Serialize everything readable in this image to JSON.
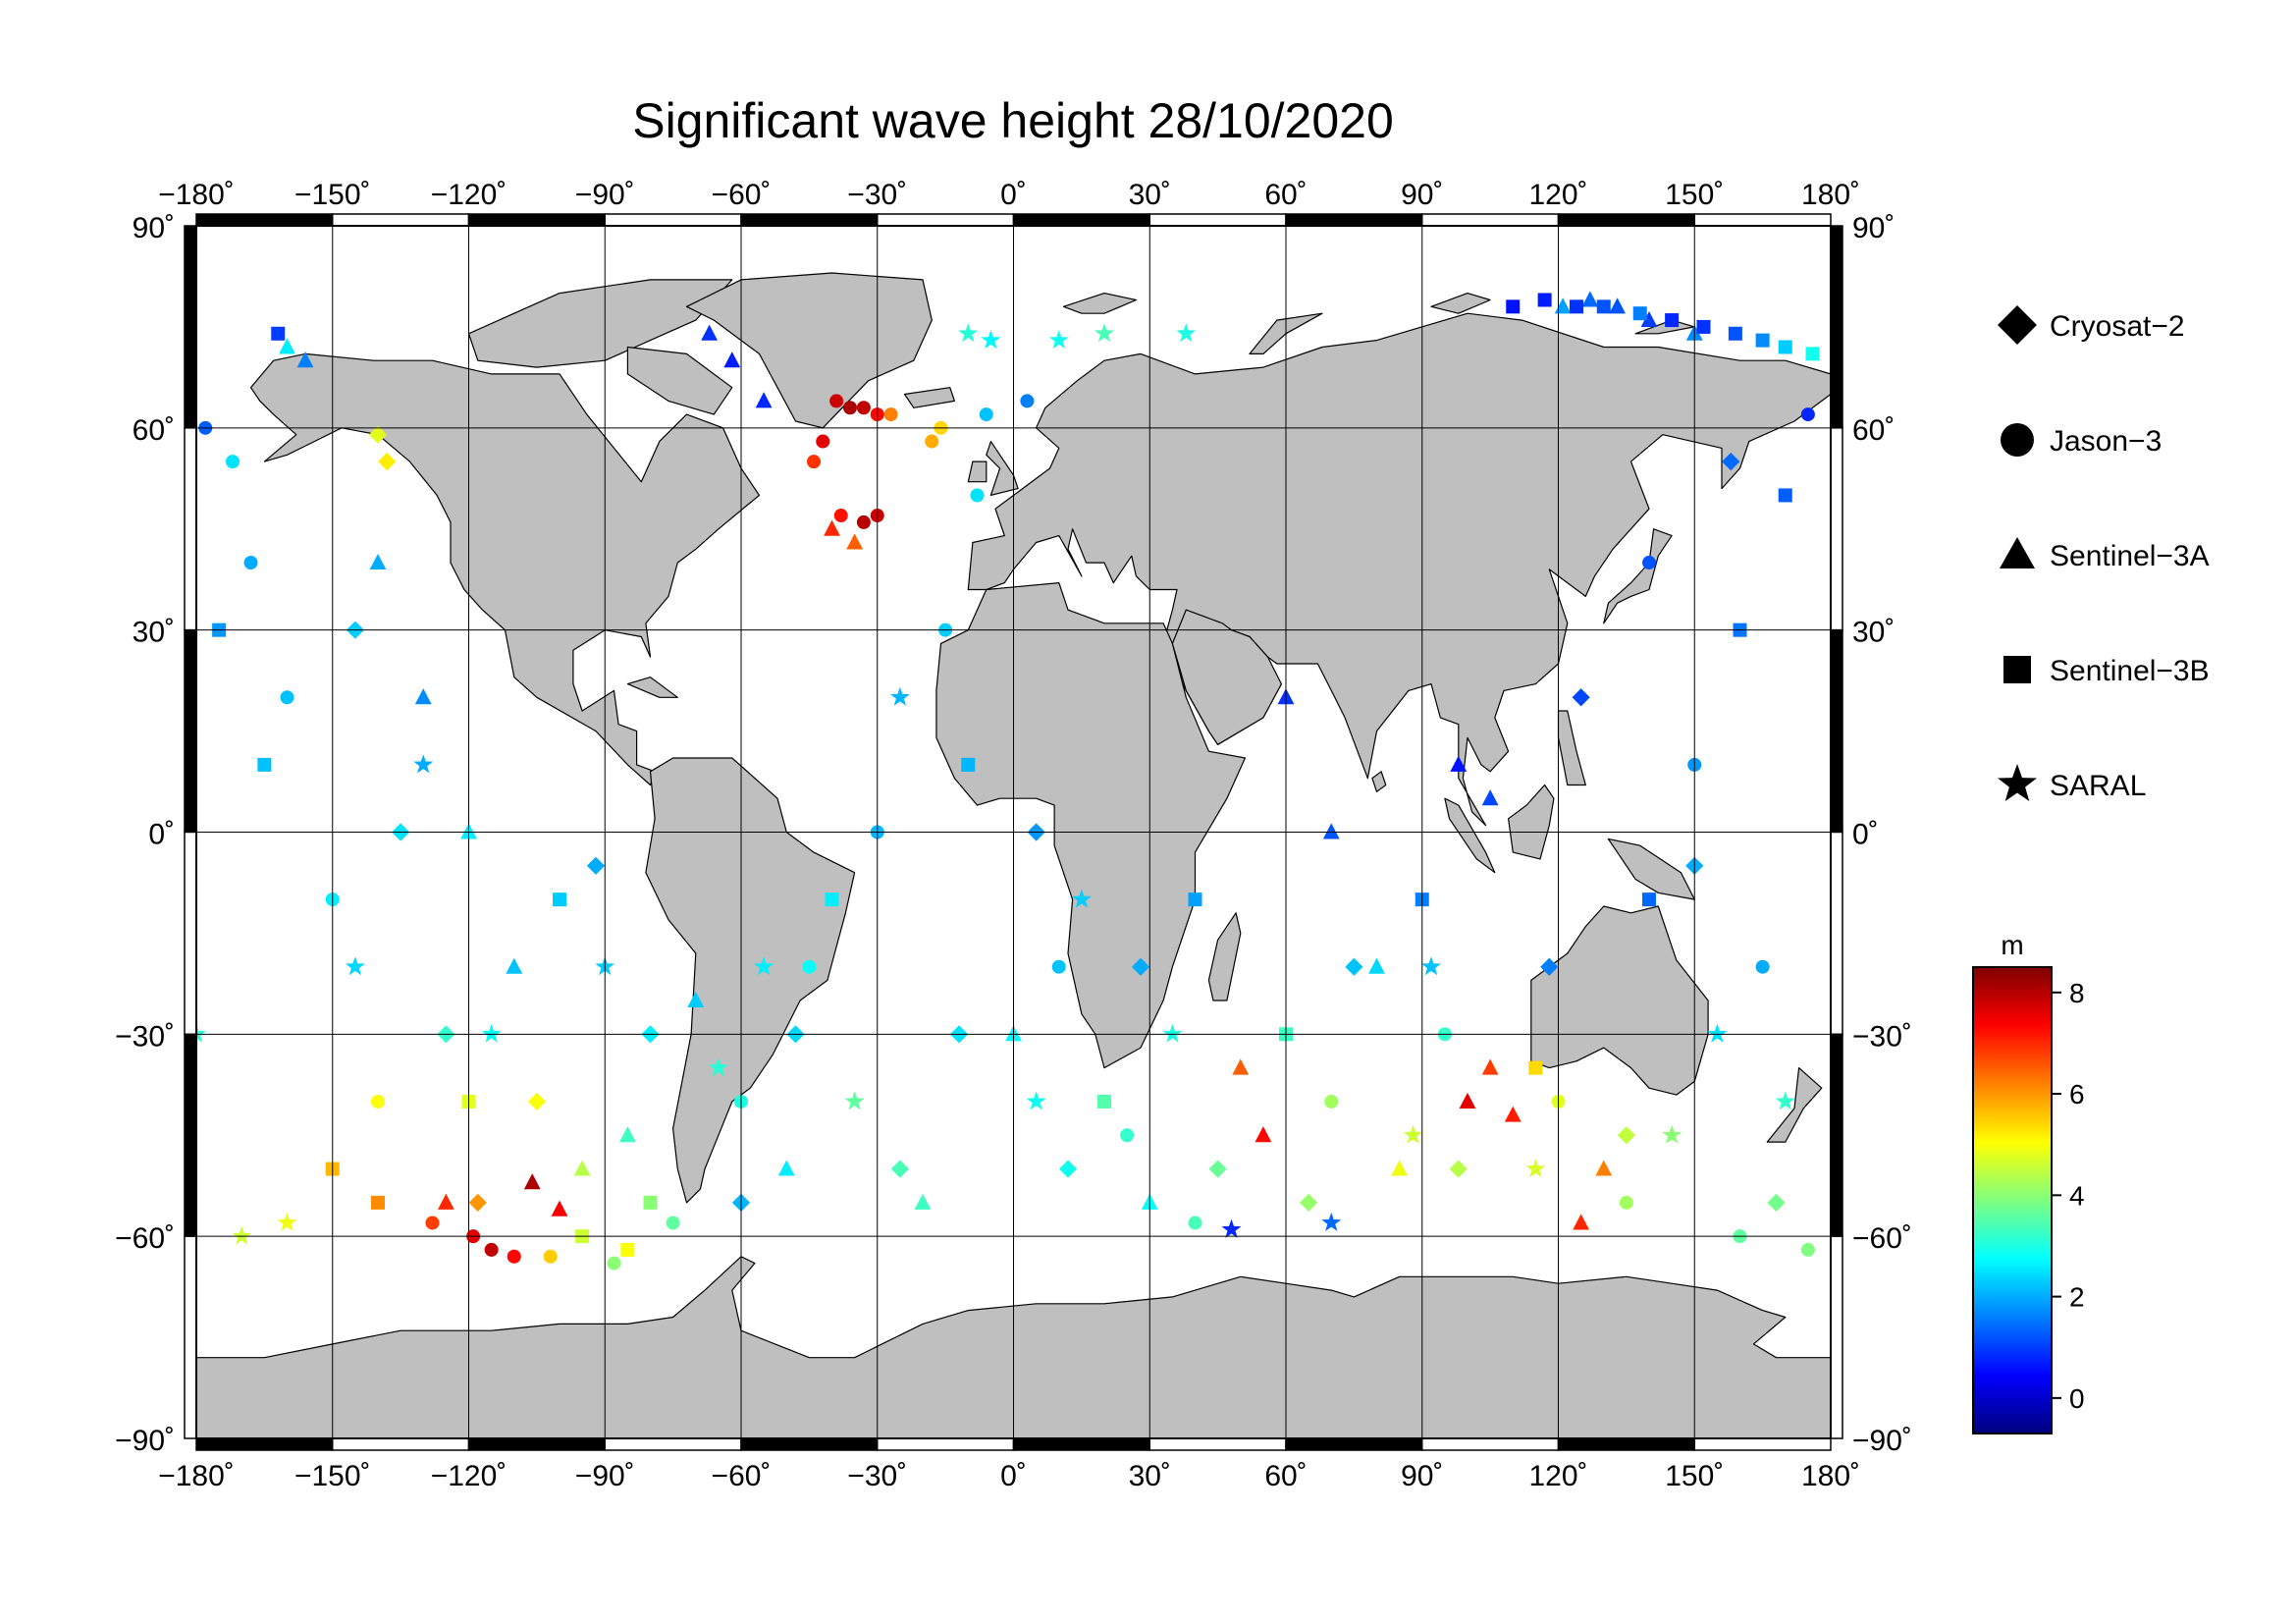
{
  "title": "Significant wave height 28/10/2020",
  "map": {
    "projection": "equirectangular",
    "lon_range": [
      -180,
      180
    ],
    "lat_range": [
      -90,
      90
    ],
    "lon_ticks": [
      "−180˚",
      "−150˚",
      "−120˚",
      "−90˚",
      "−60˚",
      "−30˚",
      "0˚",
      "30˚",
      "60˚",
      "90˚",
      "120˚",
      "150˚",
      "180˚"
    ],
    "lat_ticks_left": [
      "90˚",
      "60˚",
      "30˚",
      "0˚",
      "−30˚",
      "−60˚",
      "−90˚"
    ],
    "lat_ticks_right": [
      "90˚",
      "60˚",
      "30˚",
      "0˚",
      "−30˚",
      "−60˚",
      "−90˚"
    ],
    "land_color": "#bfbfbf",
    "ocean_color": "#ffffff",
    "grid": true
  },
  "legend": {
    "items": [
      {
        "label": "Cryosat−2",
        "marker": "diamond"
      },
      {
        "label": "Jason−3",
        "marker": "circle"
      },
      {
        "label": "Sentinel−3A",
        "marker": "triangle"
      },
      {
        "label": "Sentinel−3B",
        "marker": "square"
      },
      {
        "label": "SARAL",
        "marker": "star"
      }
    ]
  },
  "colorbar": {
    "unit": "m",
    "range": [
      -0.7,
      8.5
    ],
    "tick_values": [
      0,
      2,
      4,
      6,
      8
    ],
    "tick_labels": [
      "0",
      "2",
      "4",
      "6",
      "8"
    ],
    "colormap": "jet"
  },
  "chart_data": {
    "type": "scatter",
    "title": "Significant wave height 28/10/2020",
    "xlabel": "",
    "ylabel": "",
    "xlim": [
      -180,
      180
    ],
    "ylim": [
      -90,
      90
    ],
    "color_variable": "significant wave height (m)",
    "series": [
      {
        "name": "Jason−3",
        "marker": "circle",
        "points": [
          [
            -39,
            64,
            7.8
          ],
          [
            -36,
            63,
            8.1
          ],
          [
            -33,
            63,
            7.9
          ],
          [
            -30,
            62,
            7.3
          ],
          [
            -27,
            62,
            6.2
          ],
          [
            -42,
            58,
            7.6
          ],
          [
            -44,
            55,
            6.9
          ],
          [
            -38,
            47,
            7.2
          ],
          [
            -33,
            46,
            8.0
          ],
          [
            -30,
            47,
            7.8
          ],
          [
            -18,
            58,
            5.8
          ],
          [
            -16,
            60,
            5.4
          ],
          [
            -6,
            62,
            2.2
          ],
          [
            3,
            64,
            1.6
          ],
          [
            -178,
            60,
            1.3
          ],
          [
            -172,
            55,
            2.5
          ],
          [
            -168,
            40,
            2.0
          ],
          [
            -160,
            20,
            2.2
          ],
          [
            -150,
            -10,
            2.6
          ],
          [
            -140,
            -40,
            5.0
          ],
          [
            -128,
            -58,
            6.8
          ],
          [
            -119,
            -60,
            7.6
          ],
          [
            -115,
            -62,
            7.9
          ],
          [
            -110,
            -63,
            7.3
          ],
          [
            -102,
            -63,
            5.5
          ],
          [
            -88,
            -64,
            4.0
          ],
          [
            -75,
            -58,
            3.6
          ],
          [
            -60,
            -40,
            3.0
          ],
          [
            -45,
            -20,
            2.8
          ],
          [
            -30,
            0,
            2.1
          ],
          [
            -15,
            30,
            2.3
          ],
          [
            -8,
            50,
            2.5
          ],
          [
            10,
            -20,
            2.2
          ],
          [
            25,
            -45,
            3.2
          ],
          [
            40,
            -58,
            3.4
          ],
          [
            70,
            -40,
            4.2
          ],
          [
            95,
            -30,
            3.2
          ],
          [
            120,
            -40,
            4.8
          ],
          [
            135,
            -55,
            4.2
          ],
          [
            160,
            -60,
            3.6
          ],
          [
            175,
            -62,
            3.9
          ],
          [
            165,
            -20,
            2.0
          ],
          [
            150,
            10,
            1.8
          ],
          [
            140,
            40,
            1.2
          ],
          [
            175,
            62,
            0.8
          ]
        ]
      },
      {
        "name": "Sentinel−3A",
        "marker": "triangle",
        "points": [
          [
            -160,
            72,
            2.6
          ],
          [
            -156,
            70,
            1.6
          ],
          [
            -67,
            74,
            0.9
          ],
          [
            -62,
            70,
            0.7
          ],
          [
            -55,
            64,
            0.8
          ],
          [
            -40,
            45,
            7.0
          ],
          [
            -35,
            43,
            6.5
          ],
          [
            -106,
            -52,
            8.1
          ],
          [
            -100,
            -56,
            7.4
          ],
          [
            -125,
            -55,
            7.0
          ],
          [
            -85,
            -45,
            3.3
          ],
          [
            -70,
            -25,
            2.3
          ],
          [
            -50,
            -50,
            2.6
          ],
          [
            -20,
            -55,
            3.3
          ],
          [
            0,
            -30,
            2.7
          ],
          [
            30,
            -55,
            2.8
          ],
          [
            50,
            -35,
            6.5
          ],
          [
            55,
            -45,
            7.3
          ],
          [
            100,
            -40,
            7.6
          ],
          [
            105,
            -35,
            6.8
          ],
          [
            110,
            -42,
            7.1
          ],
          [
            125,
            -58,
            7.0
          ],
          [
            130,
            -50,
            6.2
          ],
          [
            121,
            78,
            1.9
          ],
          [
            127,
            79,
            1.4
          ],
          [
            133,
            78,
            1.2
          ],
          [
            140,
            76,
            1.0
          ],
          [
            150,
            74,
            1.7
          ],
          [
            98,
            10,
            0.6
          ],
          [
            105,
            5,
            1.1
          ],
          [
            -140,
            40,
            2.0
          ],
          [
            -130,
            20,
            1.7
          ],
          [
            -120,
            0,
            2.6
          ],
          [
            -110,
            -20,
            2.2
          ],
          [
            -95,
            -50,
            4.4
          ],
          [
            80,
            -20,
            2.4
          ],
          [
            85,
            -50,
            4.9
          ],
          [
            70,
            0,
            1.2
          ],
          [
            60,
            20,
            0.9
          ]
        ]
      },
      {
        "name": "Sentinel−3B",
        "marker": "square",
        "points": [
          [
            -162,
            74,
            1.0
          ],
          [
            110,
            78,
            0.6
          ],
          [
            117,
            79,
            0.7
          ],
          [
            124,
            78,
            0.9
          ],
          [
            130,
            78,
            1.2
          ],
          [
            138,
            77,
            1.6
          ],
          [
            145,
            76,
            0.8
          ],
          [
            152,
            75,
            0.9
          ],
          [
            159,
            74,
            1.2
          ],
          [
            165,
            73,
            1.7
          ],
          [
            170,
            72,
            2.3
          ],
          [
            176,
            71,
            2.9
          ],
          [
            -95,
            -60,
            4.6
          ],
          [
            -85,
            -62,
            5.0
          ],
          [
            -150,
            -50,
            5.7
          ],
          [
            -140,
            -55,
            6.1
          ],
          [
            -120,
            -40,
            4.8
          ],
          [
            -100,
            -10,
            2.3
          ],
          [
            -80,
            -55,
            4.0
          ],
          [
            -40,
            -10,
            2.6
          ],
          [
            -10,
            10,
            2.1
          ],
          [
            20,
            -40,
            3.5
          ],
          [
            40,
            -10,
            1.9
          ],
          [
            60,
            -30,
            3.3
          ],
          [
            90,
            -10,
            1.6
          ],
          [
            115,
            -35,
            5.4
          ],
          [
            140,
            -10,
            1.4
          ],
          [
            160,
            30,
            1.5
          ],
          [
            170,
            50,
            1.3
          ],
          [
            -175,
            30,
            1.8
          ],
          [
            -165,
            10,
            2.2
          ]
        ]
      },
      {
        "name": "SARAL",
        "marker": "star",
        "points": [
          [
            -10,
            74,
            3.1
          ],
          [
            -5,
            73,
            2.7
          ],
          [
            10,
            73,
            2.9
          ],
          [
            20,
            74,
            3.4
          ],
          [
            38,
            74,
            3.0
          ],
          [
            -170,
            -60,
            4.6
          ],
          [
            -160,
            -58,
            4.9
          ],
          [
            -145,
            -20,
            2.4
          ],
          [
            -130,
            10,
            2.0
          ],
          [
            -115,
            -30,
            2.8
          ],
          [
            -90,
            -20,
            2.3
          ],
          [
            -65,
            -35,
            3.1
          ],
          [
            -55,
            -20,
            2.6
          ],
          [
            -35,
            -40,
            3.6
          ],
          [
            -25,
            20,
            2.1
          ],
          [
            5,
            -40,
            2.9
          ],
          [
            15,
            -10,
            2.3
          ],
          [
            35,
            -30,
            3.0
          ],
          [
            48,
            -59,
            0.8
          ],
          [
            70,
            -58,
            1.4
          ],
          [
            88,
            -45,
            4.6
          ],
          [
            92,
            -20,
            2.2
          ],
          [
            115,
            -50,
            4.7
          ],
          [
            145,
            -45,
            4.0
          ],
          [
            155,
            -30,
            2.5
          ],
          [
            170,
            -40,
            3.2
          ],
          [
            -180,
            -30,
            3.1
          ]
        ]
      },
      {
        "name": "Cryosat−2",
        "marker": "diamond",
        "points": [
          [
            -140,
            59,
            4.8
          ],
          [
            -138,
            55,
            5.2
          ],
          [
            -145,
            30,
            2.3
          ],
          [
            -135,
            0,
            2.5
          ],
          [
            -125,
            -30,
            3.2
          ],
          [
            -118,
            -55,
            6.0
          ],
          [
            -105,
            -40,
            5.0
          ],
          [
            -92,
            -5,
            2.0
          ],
          [
            -80,
            -30,
            2.6
          ],
          [
            -60,
            -55,
            2.1
          ],
          [
            -48,
            -30,
            2.4
          ],
          [
            -25,
            -50,
            3.4
          ],
          [
            -12,
            -30,
            2.5
          ],
          [
            5,
            0,
            1.8
          ],
          [
            12,
            -50,
            2.9
          ],
          [
            28,
            -20,
            2.0
          ],
          [
            45,
            -50,
            3.7
          ],
          [
            65,
            -55,
            4.1
          ],
          [
            75,
            -20,
            2.2
          ],
          [
            98,
            -50,
            4.4
          ],
          [
            118,
            -20,
            1.6
          ],
          [
            125,
            20,
            1.1
          ],
          [
            135,
            -45,
            4.5
          ],
          [
            150,
            -5,
            2.0
          ],
          [
            158,
            55,
            1.4
          ],
          [
            168,
            -55,
            3.8
          ]
        ]
      }
    ]
  }
}
